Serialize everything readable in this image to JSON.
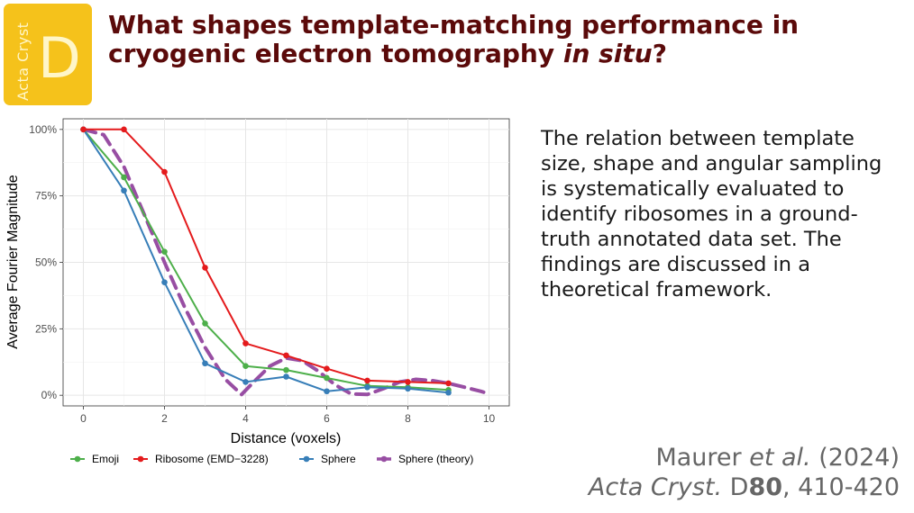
{
  "logo": {
    "vertical_text": "Acta Cryst",
    "letter": "D",
    "color": "#f5c21b"
  },
  "title": {
    "line1": "What shapes template-matching performance in",
    "line2_plain": "cryogenic electron tomography ",
    "line2_italic": "in situ",
    "line2_end": "?"
  },
  "description": "The relation between template size, shape and angular sampling is systematically evaluated to identify ribosomes in a ground-truth annotated data set. The findings are discussed in a theoretical framework.",
  "citation": {
    "author": "Maurer ",
    "etal": "et al.",
    "year": " (2024)",
    "journal": "Acta Cryst.",
    "section": " D",
    "volume": "80",
    "pages": ", 410-420"
  },
  "chart_data": {
    "type": "line",
    "xlabel": "Distance (voxels)",
    "ylabel": "Average Fourier Magnitude",
    "xlim": [
      -0.5,
      10.5
    ],
    "ylim": [
      -4,
      104
    ],
    "x_ticks": [
      0,
      2,
      4,
      6,
      8,
      10
    ],
    "y_ticks": [
      0,
      25,
      50,
      75,
      100
    ],
    "y_tick_labels": [
      "0%",
      "25%",
      "50%",
      "75%",
      "100%"
    ],
    "grid": true,
    "legend_position": "bottom",
    "series": [
      {
        "name": "Emoji",
        "color": "#4daf4a",
        "style": "solid-points",
        "x": [
          0,
          1,
          2,
          3,
          4,
          5,
          6,
          7,
          8,
          9
        ],
        "y": [
          100,
          82,
          54,
          27,
          11,
          9.5,
          6.5,
          3.5,
          3,
          2
        ]
      },
      {
        "name": "Ribosome (EMD−3228)",
        "color": "#e41a1c",
        "style": "solid-points",
        "x": [
          0,
          1,
          2,
          3,
          4,
          5,
          6,
          7,
          8,
          9
        ],
        "y": [
          100,
          100,
          84,
          48,
          19.5,
          15,
          10,
          5.5,
          5,
          4.5
        ]
      },
      {
        "name": "Sphere",
        "color": "#377eb8",
        "style": "solid-points",
        "x": [
          0,
          1,
          2,
          3,
          4,
          5,
          6,
          7,
          8,
          9
        ],
        "y": [
          100,
          77,
          42.5,
          12,
          5,
          7,
          1.5,
          3,
          2.5,
          1
        ]
      },
      {
        "name": "Sphere (theory)",
        "color": "#984ea3",
        "style": "dashed",
        "x": [
          0,
          0.5,
          1,
          1.5,
          2,
          2.5,
          3,
          3.5,
          3.9,
          4.2,
          4.6,
          5,
          5.4,
          5.8,
          6.2,
          6.6,
          7,
          7.4,
          7.8,
          8.2,
          8.6,
          9,
          9.4,
          9.8,
          10
        ],
        "y": [
          100,
          98,
          86,
          68,
          50,
          33,
          18,
          6,
          0.3,
          5,
          11,
          14,
          13,
          9,
          4,
          0.5,
          0.3,
          2.5,
          5,
          6,
          5.5,
          4.5,
          3,
          1.5,
          0.5
        ]
      }
    ]
  }
}
